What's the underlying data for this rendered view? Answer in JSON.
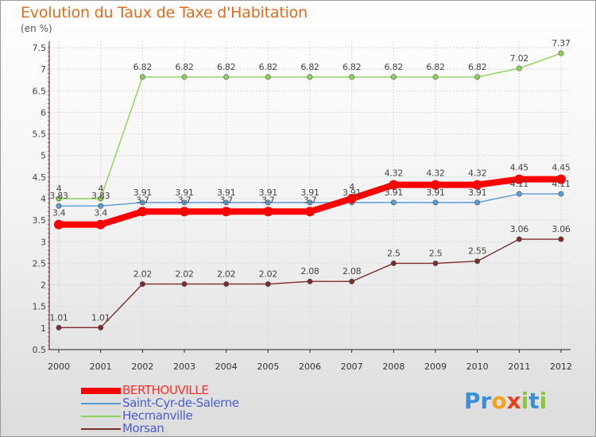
{
  "title": "Evolution du Taux de Taxe d'Habitation",
  "subtitle": "(en %)",
  "logo": {
    "letters": [
      "P",
      "r",
      "o",
      "x",
      "i",
      "t",
      "i"
    ],
    "letter_colors": [
      "#3a8fd6",
      "#3a8fd6",
      "#f0a31e",
      "#e8401c",
      "#8cc63f",
      "#3a8fd6",
      "#8cc63f"
    ]
  },
  "chart_data": {
    "type": "line",
    "x": [
      "2000",
      "2001",
      "2002",
      "2003",
      "2004",
      "2005",
      "2006",
      "2007",
      "2008",
      "2009",
      "2010",
      "2011",
      "2012"
    ],
    "ylim": [
      0.5,
      7.5
    ],
    "yticks": [
      "0.5",
      "1",
      "1.5",
      "2",
      "2.5",
      "3",
      "3.5",
      "4",
      "4.5",
      "5",
      "5.5",
      "6",
      "6.5",
      "7",
      "7.5"
    ],
    "grid": true,
    "legend_position": "bottom-left",
    "series": [
      {
        "name": "BERTHOUVILLE",
        "color": "#ff0000",
        "emphasis": true,
        "values": [
          3.4,
          3.4,
          3.7,
          3.7,
          3.7,
          3.7,
          3.7,
          4.0,
          4.32,
          4.32,
          4.32,
          4.45,
          4.45
        ],
        "labels": [
          "3.4",
          "3.4",
          "3.7",
          "3.7",
          "3.7",
          "3.7",
          "3.7",
          "4",
          "4.32",
          "4.32",
          "4.32",
          "4.45",
          "4.45"
        ]
      },
      {
        "name": "Saint-Cyr-de-Salerne",
        "color": "#5b9bd5",
        "emphasis": false,
        "values": [
          3.83,
          3.83,
          3.91,
          3.91,
          3.91,
          3.91,
          3.91,
          3.91,
          3.91,
          3.91,
          3.91,
          4.11,
          4.11
        ],
        "labels": [
          "3.83",
          "3.83",
          "3.91",
          "3.91",
          "3.91",
          "3.91",
          "3.91",
          "3.91",
          "3.91",
          "3.91",
          "3.91",
          "4.11",
          "4.11"
        ]
      },
      {
        "name": "Hecmanville",
        "color": "#8ed05a",
        "emphasis": false,
        "values": [
          4.0,
          4.0,
          6.82,
          6.82,
          6.82,
          6.82,
          6.82,
          6.82,
          6.82,
          6.82,
          6.82,
          7.02,
          7.37
        ],
        "labels": [
          "4",
          "4",
          "6.82",
          "6.82",
          "6.82",
          "6.82",
          "6.82",
          "6.82",
          "6.82",
          "6.82",
          "6.82",
          "7.02",
          "7.37"
        ]
      },
      {
        "name": "Morsan",
        "color": "#7b2c2c",
        "emphasis": false,
        "values": [
          1.01,
          1.01,
          2.02,
          2.02,
          2.02,
          2.02,
          2.08,
          2.08,
          2.5,
          2.5,
          2.55,
          3.06,
          3.06
        ],
        "labels": [
          "1.01",
          "1.01",
          "2.02",
          "2.02",
          "2.02",
          "2.02",
          "2.08",
          "2.08",
          "2.5",
          "2.5",
          "2.55",
          "3.06",
          "3.06"
        ]
      }
    ]
  }
}
